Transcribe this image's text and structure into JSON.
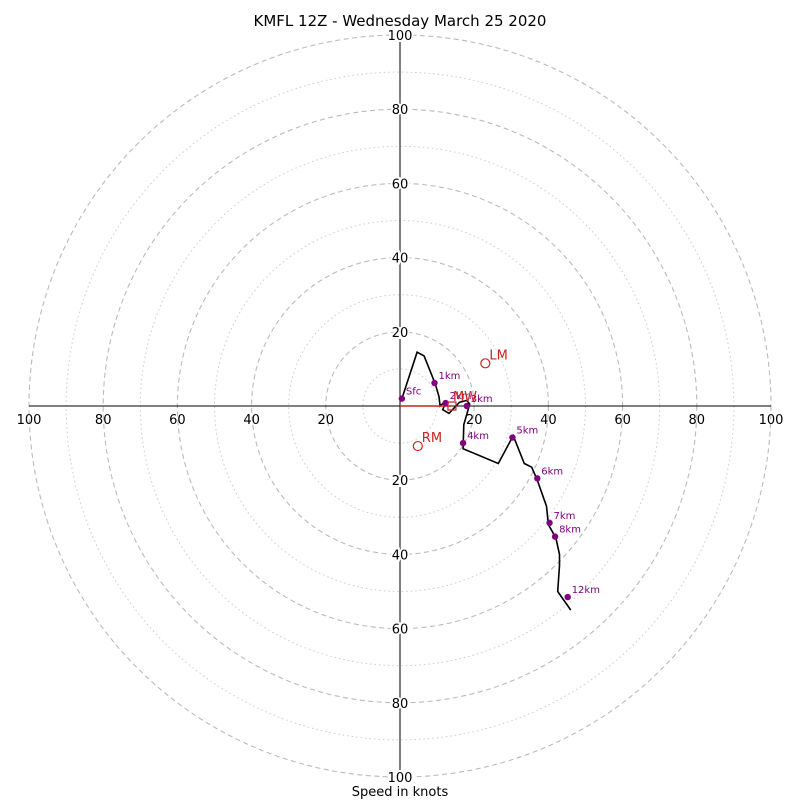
{
  "chart_data": {
    "type": "hodograph",
    "title": "KMFL 12Z - Wednesday March 25 2020",
    "xlabel": "Speed in knots",
    "units": "knots",
    "range": [
      -100,
      100
    ],
    "rings_major": [
      20,
      40,
      60,
      80,
      100
    ],
    "rings_minor": [
      10,
      30,
      50,
      70,
      90
    ],
    "tick_labels": {
      "x": [
        "100",
        "80",
        "60",
        "40",
        "20",
        "20",
        "40",
        "60",
        "80",
        "100"
      ],
      "y": [
        "100",
        "80",
        "60",
        "40",
        "20",
        "20",
        "40",
        "60",
        "80",
        "100"
      ]
    },
    "grid": true,
    "colors": {
      "profile": "#000000",
      "height_markers": "#800080",
      "storm_motion": "#cc2222",
      "ring_major": "#bbbbbb",
      "ring_minor": "#cccccc"
    },
    "profile": {
      "u": [
        0.5,
        4.6,
        6.5,
        9.5,
        10.5,
        10.8,
        12.5,
        11.5,
        13.2,
        16,
        18,
        18.8,
        17.2,
        17,
        26.5,
        30.5,
        33.5,
        35.5,
        37,
        39.5,
        40,
        42,
        43,
        43,
        42.5,
        46
      ],
      "v": [
        -2,
        -14.5,
        -13.5,
        -6,
        -2.5,
        0,
        -1.5,
        1,
        2,
        -1,
        -1.5,
        -0.5,
        5,
        11.5,
        15.5,
        8,
        15.5,
        16.5,
        20,
        27,
        32,
        35.5,
        40,
        43,
        50,
        55
      ]
    },
    "height_markers": [
      {
        "label": "Sfc",
        "u": 0.5,
        "v": -2
      },
      {
        "label": "1km",
        "u": 9.3,
        "v": -6.2
      },
      {
        "label": "2km",
        "u": 12.3,
        "v": -0.8
      },
      {
        "label": "3km",
        "u": 18.0,
        "v": 0
      },
      {
        "label": "4km",
        "u": 17.0,
        "v": 10.0
      },
      {
        "label": "5km",
        "u": 30.3,
        "v": 8.5
      },
      {
        "label": "6km",
        "u": 37.0,
        "v": 19.5
      },
      {
        "label": "7km",
        "u": 40.3,
        "v": 31.5
      },
      {
        "label": "8km",
        "u": 41.8,
        "v": 35.2
      },
      {
        "label": "12km",
        "u": 45.2,
        "v": 51.5
      }
    ],
    "storm_motion": [
      {
        "label": "LM",
        "u": 23.0,
        "v": -11.5
      },
      {
        "label": "RM",
        "u": 4.8,
        "v": 10.8
      },
      {
        "label": "MW",
        "u": 14.0,
        "v": 0
      }
    ],
    "mean_wind_shear_line": {
      "u": [
        0,
        14.0
      ],
      "v": [
        0,
        0
      ]
    }
  }
}
